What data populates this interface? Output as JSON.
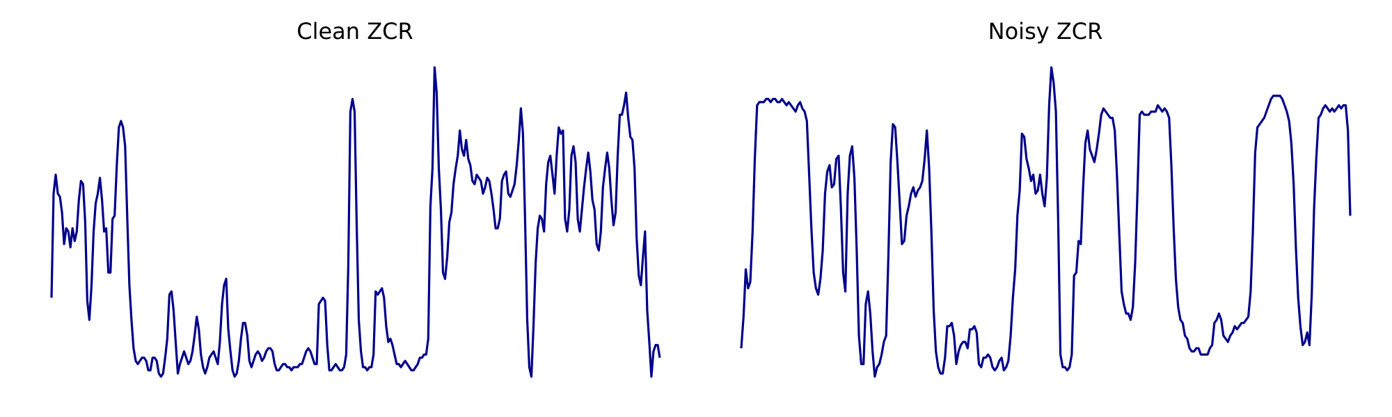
{
  "line_color": "#00008b",
  "chart_data": [
    {
      "type": "line",
      "title": "Clean ZCR",
      "axes_visible": false,
      "grid": false,
      "ylim": [
        0,
        1
      ],
      "series": [
        {
          "values": [
            0.27,
            0.6,
            0.66,
            0.6,
            0.59,
            0.54,
            0.44,
            0.49,
            0.48,
            0.43,
            0.49,
            0.45,
            0.48,
            0.58,
            0.64,
            0.63,
            0.51,
            0.26,
            0.2,
            0.31,
            0.48,
            0.57,
            0.6,
            0.65,
            0.58,
            0.48,
            0.49,
            0.35,
            0.35,
            0.52,
            0.53,
            0.69,
            0.81,
            0.83,
            0.81,
            0.75,
            0.52,
            0.31,
            0.2,
            0.11,
            0.07,
            0.06,
            0.07,
            0.08,
            0.08,
            0.07,
            0.04,
            0.04,
            0.08,
            0.08,
            0.07,
            0.03,
            0.02,
            0.03,
            0.08,
            0.14,
            0.28,
            0.29,
            0.23,
            0.13,
            0.03,
            0.06,
            0.08,
            0.1,
            0.08,
            0.06,
            0.07,
            0.1,
            0.15,
            0.21,
            0.17,
            0.09,
            0.05,
            0.03,
            0.05,
            0.08,
            0.09,
            0.1,
            0.08,
            0.06,
            0.13,
            0.25,
            0.31,
            0.33,
            0.17,
            0.1,
            0.04,
            0.02,
            0.03,
            0.07,
            0.14,
            0.19,
            0.19,
            0.15,
            0.07,
            0.05,
            0.07,
            0.09,
            0.1,
            0.09,
            0.07,
            0.08,
            0.1,
            0.11,
            0.11,
            0.1,
            0.06,
            0.04,
            0.04,
            0.05,
            0.06,
            0.06,
            0.05,
            0.05,
            0.04,
            0.05,
            0.05,
            0.05,
            0.06,
            0.06,
            0.08,
            0.1,
            0.11,
            0.1,
            0.08,
            0.06,
            0.06,
            0.25,
            0.26,
            0.27,
            0.26,
            0.12,
            0.04,
            0.04,
            0.05,
            0.06,
            0.05,
            0.04,
            0.04,
            0.05,
            0.09,
            0.37,
            0.86,
            0.9,
            0.86,
            0.5,
            0.2,
            0.1,
            0.05,
            0.05,
            0.04,
            0.05,
            0.05,
            0.09,
            0.29,
            0.28,
            0.29,
            0.3,
            0.27,
            0.18,
            0.13,
            0.14,
            0.12,
            0.09,
            0.06,
            0.06,
            0.05,
            0.06,
            0.07,
            0.06,
            0.05,
            0.04,
            0.04,
            0.05,
            0.06,
            0.08,
            0.08,
            0.09,
            0.09,
            0.14,
            0.56,
            0.68,
            1.0,
            0.92,
            0.68,
            0.55,
            0.35,
            0.33,
            0.4,
            0.51,
            0.54,
            0.63,
            0.68,
            0.72,
            0.8,
            0.74,
            0.72,
            0.77,
            0.71,
            0.69,
            0.64,
            0.63,
            0.66,
            0.65,
            0.64,
            0.6,
            0.62,
            0.65,
            0.64,
            0.6,
            0.55,
            0.49,
            0.49,
            0.52,
            0.64,
            0.66,
            0.67,
            0.6,
            0.59,
            0.61,
            0.63,
            0.69,
            0.77,
            0.87,
            0.79,
            0.52,
            0.2,
            0.05,
            0.02,
            0.18,
            0.38,
            0.49,
            0.53,
            0.52,
            0.48,
            0.63,
            0.7,
            0.72,
            0.66,
            0.6,
            0.72,
            0.81,
            0.79,
            0.8,
            0.52,
            0.48,
            0.55,
            0.72,
            0.75,
            0.7,
            0.52,
            0.48,
            0.55,
            0.62,
            0.68,
            0.73,
            0.67,
            0.58,
            0.55,
            0.44,
            0.42,
            0.48,
            0.62,
            0.68,
            0.73,
            0.68,
            0.58,
            0.5,
            0.54,
            0.72,
            0.85,
            0.85,
            0.88,
            0.92,
            0.84,
            0.78,
            0.77,
            0.68,
            0.46,
            0.34,
            0.31,
            0.4,
            0.48,
            0.23,
            0.13,
            0.02,
            0.1,
            0.12,
            0.12,
            0.08
          ]
        }
      ]
    },
    {
      "type": "line",
      "title": "Noisy ZCR",
      "axes_visible": false,
      "grid": false,
      "ylim": [
        0,
        1
      ],
      "series": [
        {
          "values": [
            0.11,
            0.21,
            0.36,
            0.3,
            0.32,
            0.48,
            0.71,
            0.88,
            0.89,
            0.89,
            0.89,
            0.9,
            0.9,
            0.89,
            0.9,
            0.9,
            0.89,
            0.89,
            0.9,
            0.89,
            0.88,
            0.89,
            0.88,
            0.87,
            0.86,
            0.88,
            0.89,
            0.87,
            0.86,
            0.83,
            0.66,
            0.49,
            0.35,
            0.3,
            0.28,
            0.33,
            0.42,
            0.6,
            0.67,
            0.69,
            0.62,
            0.63,
            0.71,
            0.72,
            0.56,
            0.35,
            0.29,
            0.6,
            0.72,
            0.75,
            0.65,
            0.42,
            0.15,
            0.06,
            0.06,
            0.25,
            0.29,
            0.22,
            0.1,
            0.02,
            0.05,
            0.06,
            0.09,
            0.13,
            0.15,
            0.4,
            0.7,
            0.82,
            0.81,
            0.7,
            0.57,
            0.44,
            0.45,
            0.53,
            0.56,
            0.6,
            0.62,
            0.59,
            0.61,
            0.62,
            0.64,
            0.71,
            0.8,
            0.68,
            0.48,
            0.23,
            0.1,
            0.05,
            0.03,
            0.03,
            0.08,
            0.18,
            0.18,
            0.19,
            0.15,
            0.06,
            0.1,
            0.12,
            0.13,
            0.13,
            0.11,
            0.17,
            0.17,
            0.18,
            0.16,
            0.06,
            0.05,
            0.08,
            0.08,
            0.09,
            0.08,
            0.05,
            0.04,
            0.05,
            0.07,
            0.08,
            0.04,
            0.05,
            0.07,
            0.15,
            0.27,
            0.36,
            0.53,
            0.61,
            0.79,
            0.78,
            0.71,
            0.68,
            0.64,
            0.66,
            0.6,
            0.61,
            0.66,
            0.6,
            0.56,
            0.65,
            0.88,
            1.0,
            0.95,
            0.86,
            0.51,
            0.09,
            0.05,
            0.05,
            0.04,
            0.05,
            0.09,
            0.34,
            0.35,
            0.45,
            0.44,
            0.62,
            0.76,
            0.8,
            0.74,
            0.72,
            0.7,
            0.74,
            0.79,
            0.85,
            0.87,
            0.86,
            0.85,
            0.84,
            0.84,
            0.8,
            0.65,
            0.47,
            0.29,
            0.25,
            0.22,
            0.22,
            0.2,
            0.24,
            0.38,
            0.6,
            0.85,
            0.86,
            0.85,
            0.85,
            0.85,
            0.86,
            0.86,
            0.86,
            0.88,
            0.87,
            0.86,
            0.87,
            0.86,
            0.84,
            0.69,
            0.49,
            0.33,
            0.24,
            0.2,
            0.19,
            0.15,
            0.14,
            0.11,
            0.1,
            0.1,
            0.11,
            0.11,
            0.09,
            0.09,
            0.09,
            0.09,
            0.11,
            0.12,
            0.19,
            0.2,
            0.22,
            0.2,
            0.15,
            0.14,
            0.13,
            0.15,
            0.16,
            0.18,
            0.17,
            0.18,
            0.19,
            0.19,
            0.2,
            0.21,
            0.29,
            0.48,
            0.73,
            0.81,
            0.82,
            0.83,
            0.84,
            0.86,
            0.88,
            0.9,
            0.91,
            0.91,
            0.91,
            0.91,
            0.9,
            0.88,
            0.86,
            0.83,
            0.76,
            0.63,
            0.43,
            0.27,
            0.18,
            0.12,
            0.13,
            0.16,
            0.12,
            0.28,
            0.55,
            0.71,
            0.84,
            0.85,
            0.87,
            0.88,
            0.87,
            0.86,
            0.87,
            0.86,
            0.87,
            0.88,
            0.87,
            0.88,
            0.88,
            0.8,
            0.53
          ]
        }
      ]
    }
  ]
}
